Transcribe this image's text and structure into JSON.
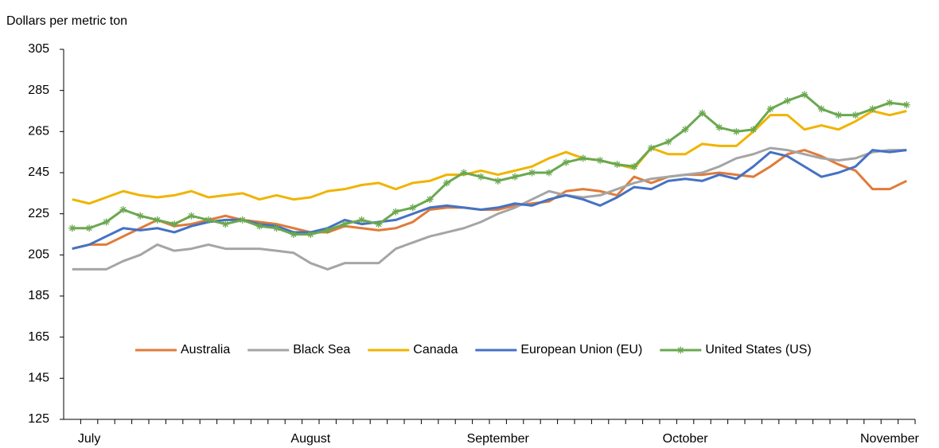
{
  "chart_data": {
    "type": "line",
    "y_axis_label": "Dollars per metric ton",
    "categories": [
      null,
      "July",
      null,
      null,
      null,
      null,
      null,
      null,
      null,
      null,
      null,
      null,
      null,
      null,
      "August",
      null,
      null,
      null,
      null,
      null,
      null,
      null,
      null,
      null,
      null,
      "September",
      null,
      null,
      null,
      null,
      null,
      null,
      null,
      null,
      null,
      null,
      "October",
      null,
      null,
      null,
      null,
      null,
      null,
      null,
      null,
      null,
      null,
      null,
      "November",
      null
    ],
    "ylim": [
      125,
      305
    ],
    "yticks": [
      125,
      145,
      165,
      185,
      205,
      225,
      245,
      265,
      285,
      305
    ],
    "grid": false,
    "legend": "bottom",
    "series": [
      {
        "name": "Australia",
        "color": "#e07b39",
        "marker": "none",
        "values": [
          208,
          210,
          210,
          214,
          218,
          222,
          219,
          220,
          222,
          224,
          222,
          221,
          220,
          218,
          216,
          216,
          219,
          218,
          217,
          218,
          221,
          227,
          228,
          228,
          227,
          227,
          229,
          230,
          231,
          236,
          237,
          236,
          234,
          243,
          240,
          243,
          244,
          244,
          245,
          244,
          243,
          248,
          254,
          256,
          253,
          249,
          246,
          237,
          237,
          241
        ]
      },
      {
        "name": "Black Sea",
        "color": "#a5a5a5",
        "marker": "none",
        "values": [
          198,
          198,
          198,
          202,
          205,
          210,
          207,
          208,
          210,
          208,
          208,
          208,
          207,
          206,
          201,
          198,
          201,
          201,
          201,
          208,
          211,
          214,
          216,
          218,
          221,
          225,
          228,
          232,
          236,
          234,
          233,
          234,
          237,
          240,
          242,
          243,
          244,
          245,
          248,
          252,
          254,
          257,
          256,
          254,
          252,
          251,
          252,
          255,
          256,
          256
        ]
      },
      {
        "name": "Canada",
        "color": "#f0b400",
        "marker": "none",
        "values": [
          232,
          230,
          233,
          236,
          234,
          233,
          234,
          236,
          233,
          234,
          235,
          232,
          234,
          232,
          233,
          236,
          237,
          239,
          240,
          237,
          240,
          241,
          244,
          244,
          246,
          244,
          246,
          248,
          252,
          255,
          252,
          251,
          249,
          247,
          257,
          254,
          254,
          259,
          258,
          258,
          265,
          273,
          273,
          266,
          268,
          266,
          270,
          275,
          273,
          275
        ]
      },
      {
        "name": "European Union (EU)",
        "color": "#4472c4",
        "marker": "none",
        "values": [
          208,
          210,
          214,
          218,
          217,
          218,
          216,
          219,
          221,
          222,
          222,
          220,
          219,
          216,
          216,
          218,
          222,
          220,
          221,
          222,
          225,
          228,
          229,
          228,
          227,
          228,
          230,
          229,
          232,
          234,
          232,
          229,
          233,
          238,
          237,
          241,
          242,
          241,
          244,
          242,
          248,
          255,
          253,
          248,
          243,
          245,
          248,
          256,
          255,
          256
        ]
      },
      {
        "name": "United States (US)",
        "color": "#6aa84f",
        "marker": "star",
        "values": [
          218,
          218,
          221,
          227,
          224,
          222,
          220,
          224,
          222,
          220,
          222,
          219,
          218,
          215,
          215,
          217,
          220,
          222,
          220,
          226,
          228,
          232,
          240,
          245,
          243,
          241,
          243,
          245,
          245,
          250,
          252,
          251,
          249,
          248,
          257,
          260,
          266,
          274,
          267,
          265,
          266,
          276,
          280,
          283,
          276,
          273,
          273,
          276,
          279,
          278
        ]
      }
    ]
  }
}
